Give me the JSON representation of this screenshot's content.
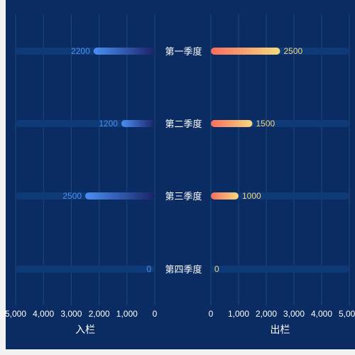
{
  "chart_data": {
    "type": "bar",
    "orientation": "horizontal-butterfly",
    "categories": [
      "第一季度",
      "第二季度",
      "第三季度",
      "第四季度"
    ],
    "series": [
      {
        "name": "入栏",
        "side": "left",
        "values": [
          2200,
          1200,
          2500,
          0
        ]
      },
      {
        "name": "出栏",
        "side": "right",
        "values": [
          2500,
          1500,
          1000,
          0
        ]
      }
    ],
    "left_axis": {
      "label": "入栏",
      "ticks": [
        "5,000",
        "4,000",
        "3,000",
        "2,000",
        "1,000",
        "0"
      ],
      "range": [
        0,
        5000
      ],
      "reversed": true
    },
    "right_axis": {
      "label": "出栏",
      "ticks": [
        "0",
        "1,000",
        "2,000",
        "3,000",
        "4,000",
        "5,000"
      ],
      "range": [
        0,
        5000
      ]
    },
    "grid": true,
    "colors": {
      "background": "#0b2c62",
      "track": "#0f3a78",
      "grid": "#1a4a7e",
      "left_bar_start": "#4a8ff5",
      "left_bar_end": "#1a2366",
      "right_bar_start": "#f96d60",
      "right_bar_end": "#f5da7e",
      "left_label": "#4d8ef0",
      "right_label": "#f5d37a"
    }
  }
}
